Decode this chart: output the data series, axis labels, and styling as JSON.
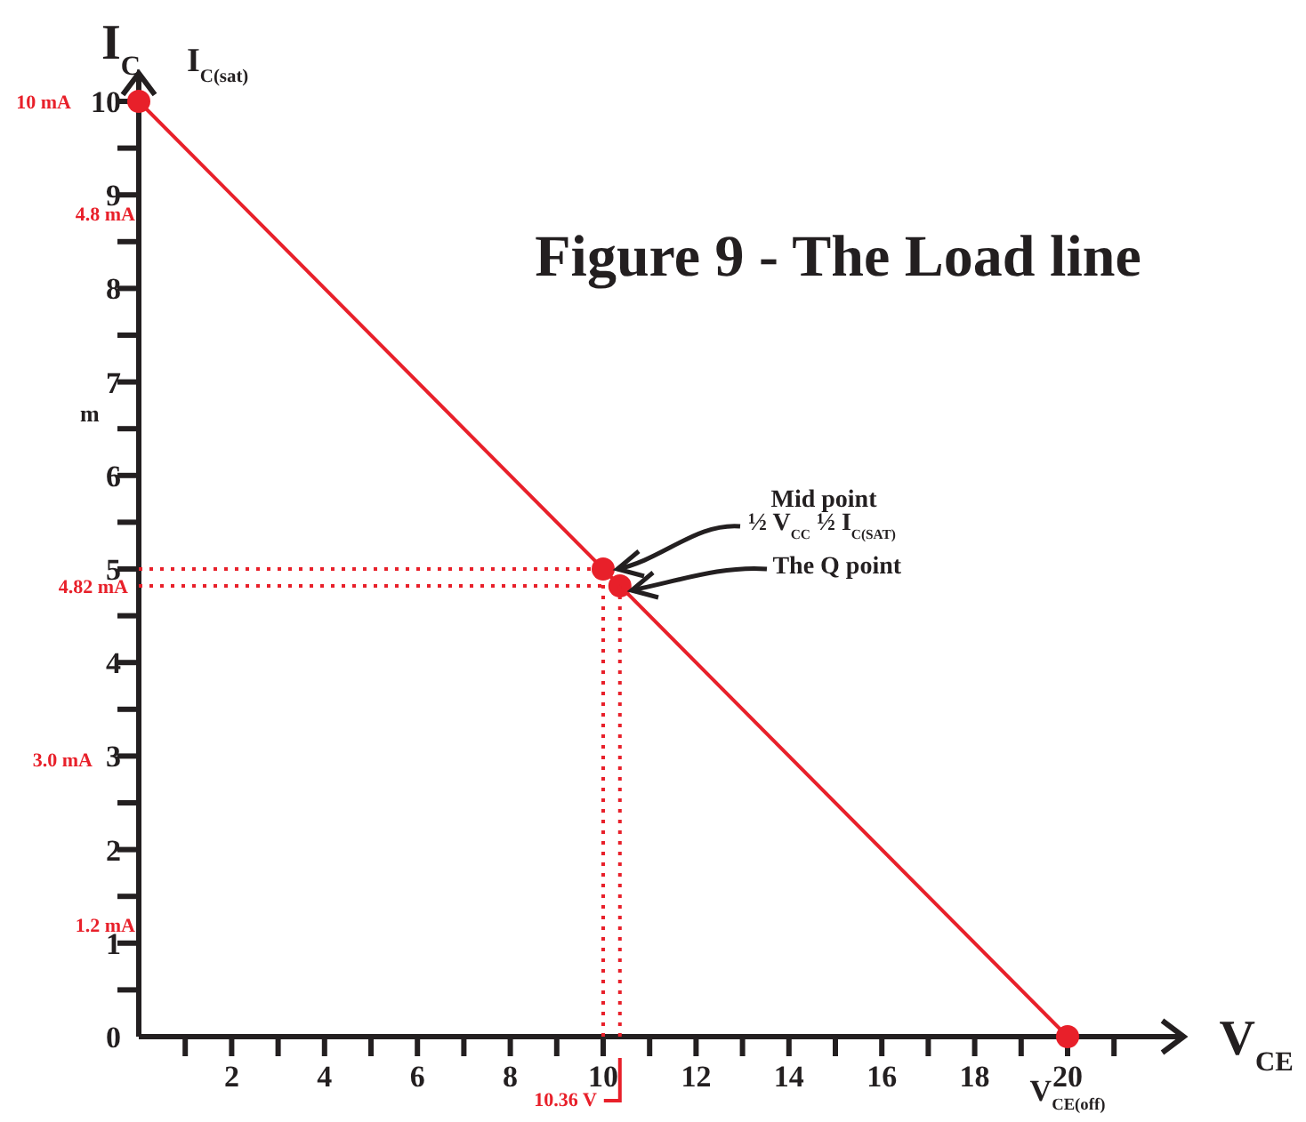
{
  "chart_data": {
    "type": "line",
    "title": "Figure 9 - The Load line",
    "xlabel": "V$_{CE}$",
    "ylabel": "I$_{C}$",
    "xlim": [
      0,
      22.5
    ],
    "ylim": [
      0,
      10.3
    ],
    "xticks": [
      {
        "value": 1,
        "label": null
      },
      2,
      {
        "value": 3,
        "label": null
      },
      4,
      {
        "value": 5,
        "label": null
      },
      6,
      {
        "value": 7,
        "label": null
      },
      8,
      {
        "value": 9,
        "label": null
      },
      10,
      {
        "value": 11,
        "label": null
      },
      12,
      {
        "value": 13,
        "label": null
      },
      14,
      {
        "value": 15,
        "label": null
      },
      16,
      {
        "value": 17,
        "label": null
      },
      18,
      {
        "value": 19,
        "label": null
      },
      20,
      {
        "value": 21,
        "label": null
      }
    ],
    "yticks": [
      0,
      {
        "value": 0.5,
        "label": null
      },
      1,
      {
        "value": 1.5,
        "label": null
      },
      2,
      {
        "value": 2.5,
        "label": null
      },
      3,
      {
        "value": 3.5,
        "label": null
      },
      4,
      {
        "value": 4.5,
        "label": null
      },
      5,
      {
        "value": 5.5,
        "label": null
      },
      6,
      {
        "value": 6.5,
        "label": null
      },
      7,
      {
        "value": 7.5,
        "label": null
      },
      8,
      {
        "value": 8.5,
        "label": null
      },
      9,
      {
        "value": 9.5,
        "label": null
      },
      10
    ],
    "grid": false,
    "marker": "circle",
    "series": [
      {
        "color": "#e8202a",
        "x": [
          0,
          20
        ],
        "values": [
          10,
          0
        ]
      },
      {
        "type": "scatter",
        "color": "#e8202a",
        "x": [
          10,
          10.36
        ],
        "values": [
          5,
          4.82
        ]
      },
      {
        "color": "#e8202a",
        "marker": "none",
        "line_style": "dotted",
        "x": [
          0,
          10
        ],
        "values": [
          5,
          5
        ]
      },
      {
        "color": "#e8202a",
        "marker": "none",
        "line_style": "dotted",
        "x": [
          0,
          10.36
        ],
        "values": [
          4.82,
          4.82
        ]
      },
      {
        "color": "#e8202a",
        "marker": "none",
        "line_style": "dotted",
        "x": [
          10,
          10
        ],
        "values": [
          0,
          5
        ]
      },
      {
        "color": "#e8202a",
        "marker": "none",
        "line_style": "dotted",
        "x": [
          10.36,
          10.36
        ],
        "values": [
          0,
          4.82
        ]
      }
    ],
    "annotations": [
      "10 mA",
      "4.8 mA",
      {
        "text": "4.82 mA",
        "x": 0,
        "y": 4.82
      },
      "3.0 mA",
      "1.2 mA",
      "m",
      {
        "text": "I$_{C(sat)}$",
        "x": 0,
        "y": 10
      },
      {
        "text": "10.36 V",
        "x": 10.36,
        "y": 0
      },
      {
        "text": "V$_{CE(off)}$",
        "x": 20,
        "y": 0
      },
      "Mid point",
      {
        "text": "½ V$_{CC}$  ½ I$_{C(SAT)}$",
        "x": 10,
        "y": 5
      },
      {
        "text": "The Q point",
        "x": 10.36,
        "y": 4.82
      }
    ]
  }
}
